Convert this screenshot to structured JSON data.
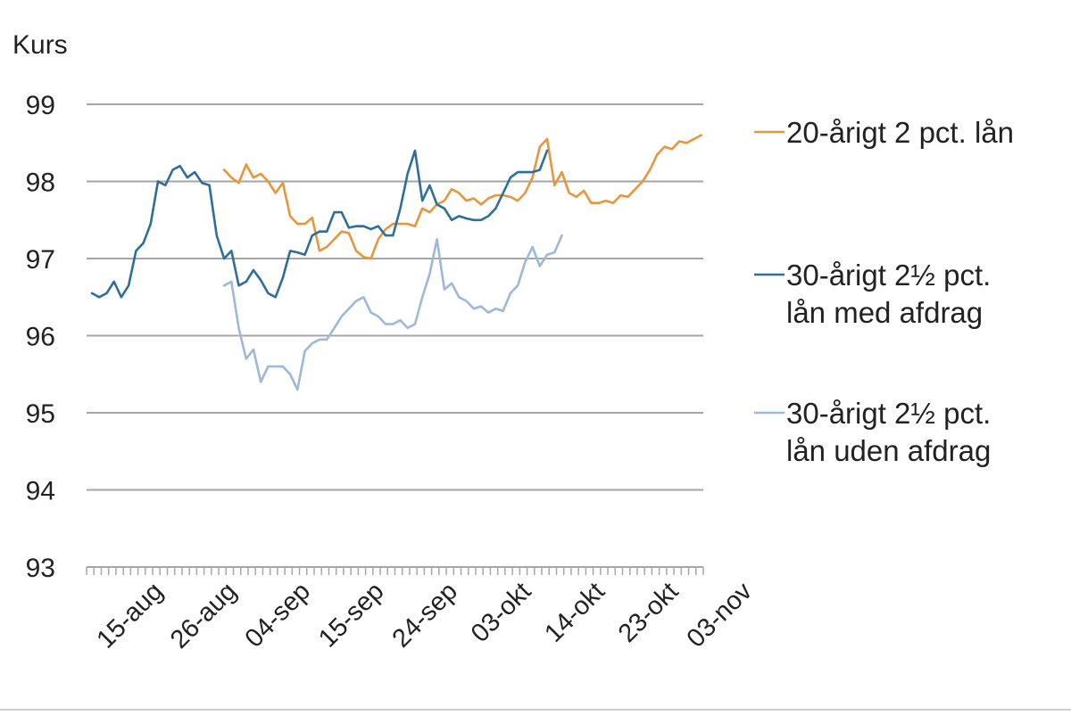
{
  "chart_data": {
    "type": "line",
    "ylabel": "Kurs",
    "ylim": [
      93,
      99
    ],
    "yticks": [
      99,
      98,
      97,
      96,
      95,
      94,
      93
    ],
    "grid": true,
    "xtick_labels": [
      "15-aug",
      "26-aug",
      "04-sep",
      "15-sep",
      "24-sep",
      "03-okt",
      "14-okt",
      "23-okt",
      "03-nov"
    ],
    "legend_position": "right",
    "series": [
      {
        "name": [
          "20-årigt 2 pct. lån"
        ],
        "color": "#E8963C",
        "start_index": 18,
        "values": [
          98.15,
          98.05,
          97.98,
          98.22,
          98.05,
          98.1,
          98.0,
          97.85,
          97.98,
          97.55,
          97.45,
          97.45,
          97.53,
          97.1,
          97.15,
          97.25,
          97.35,
          97.33,
          97.1,
          97.02,
          97.0,
          97.25,
          97.38,
          97.45,
          97.45,
          97.45,
          97.42,
          97.65,
          97.6,
          97.7,
          97.75,
          97.9,
          97.85,
          97.75,
          97.78,
          97.7,
          97.78,
          97.82,
          97.82,
          97.8,
          97.75,
          97.85,
          98.05,
          98.45,
          98.55,
          97.95,
          98.12,
          97.85,
          97.8,
          97.88,
          97.72,
          97.72,
          97.75,
          97.72,
          97.82,
          97.8,
          97.9,
          98.0,
          98.15,
          98.35,
          98.45,
          98.42,
          98.52,
          98.5,
          98.55,
          98.6
        ]
      },
      {
        "name": [
          "30-årigt 2½ pct.",
          "lån med afdrag"
        ],
        "color": "#2E6E9E",
        "start_index": 0,
        "values": [
          96.55,
          96.5,
          96.55,
          96.7,
          96.5,
          96.65,
          97.1,
          97.2,
          97.45,
          98.0,
          97.95,
          98.15,
          98.2,
          98.05,
          98.12,
          97.98,
          97.95,
          97.3,
          97.0,
          97.1,
          96.65,
          96.7,
          96.85,
          96.72,
          96.55,
          96.5,
          96.75,
          97.1,
          97.08,
          97.05,
          97.3,
          97.35,
          97.35,
          97.6,
          97.6,
          97.4,
          97.42,
          97.42,
          97.38,
          97.42,
          97.3,
          97.3,
          97.65,
          98.1,
          98.4,
          97.75,
          97.95,
          97.7,
          97.65,
          97.5,
          97.55,
          97.52,
          97.5,
          97.5,
          97.55,
          97.65,
          97.85,
          98.05,
          98.12,
          98.12,
          98.12,
          98.15,
          98.4
        ]
      },
      {
        "name": [
          "30-årigt 2½ pct.",
          "lån uden afdrag"
        ],
        "color": "#9DB8D8",
        "start_index": 18,
        "values": [
          96.65,
          96.7,
          96.1,
          95.7,
          95.82,
          95.4,
          95.6,
          95.6,
          95.6,
          95.5,
          95.3,
          95.8,
          95.9,
          95.95,
          95.95,
          96.1,
          96.25,
          96.35,
          96.45,
          96.5,
          96.3,
          96.25,
          96.15,
          96.15,
          96.2,
          96.1,
          96.15,
          96.5,
          96.8,
          97.25,
          96.6,
          96.68,
          96.5,
          96.45,
          96.35,
          96.38,
          96.3,
          96.35,
          96.32,
          96.55,
          96.65,
          96.95,
          97.15,
          96.9,
          97.05,
          97.08,
          97.3
        ]
      }
    ]
  }
}
